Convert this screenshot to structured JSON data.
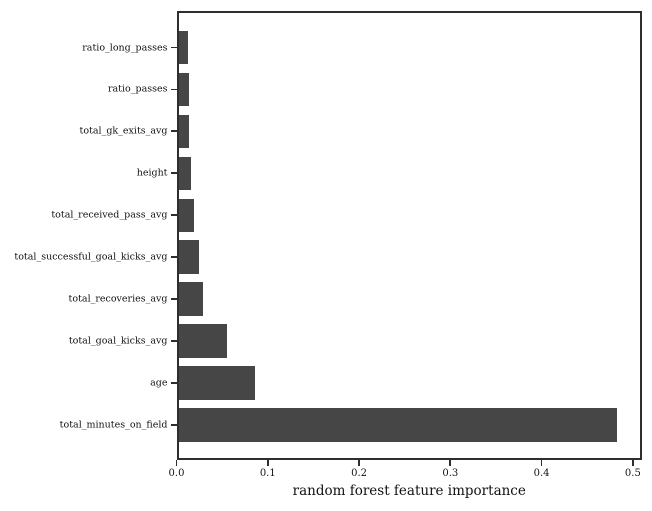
{
  "chart_data": {
    "type": "bar",
    "orientation": "horizontal",
    "title": "",
    "xlabel": "random forest feature importance",
    "ylabel": "",
    "categories": [
      "ratio_long_passes",
      "ratio_passes",
      "total_gk_exits_avg",
      "height",
      "total_received_pass_avg",
      "total_successful_goal_kicks_avg",
      "total_recoveries_avg",
      "total_goal_kicks_avg",
      "age",
      "total_minutes_on_field"
    ],
    "values": [
      0.011,
      0.012,
      0.012,
      0.014,
      0.017,
      0.023,
      0.027,
      0.054,
      0.084,
      0.485
    ],
    "xlim": [
      0.0,
      0.51
    ],
    "xticks": [
      {
        "value": 0.0,
        "label": "0.0"
      },
      {
        "value": 0.1,
        "label": "0.1"
      },
      {
        "value": 0.2,
        "label": "0.2"
      },
      {
        "value": 0.3,
        "label": "0.3"
      },
      {
        "value": 0.4,
        "label": "0.4"
      },
      {
        "value": 0.5,
        "label": "0.5"
      }
    ],
    "grid": false,
    "legend": null,
    "bar_color": "#464646",
    "spine_color": "#2e2e2e",
    "background_color": "#ffffff"
  }
}
